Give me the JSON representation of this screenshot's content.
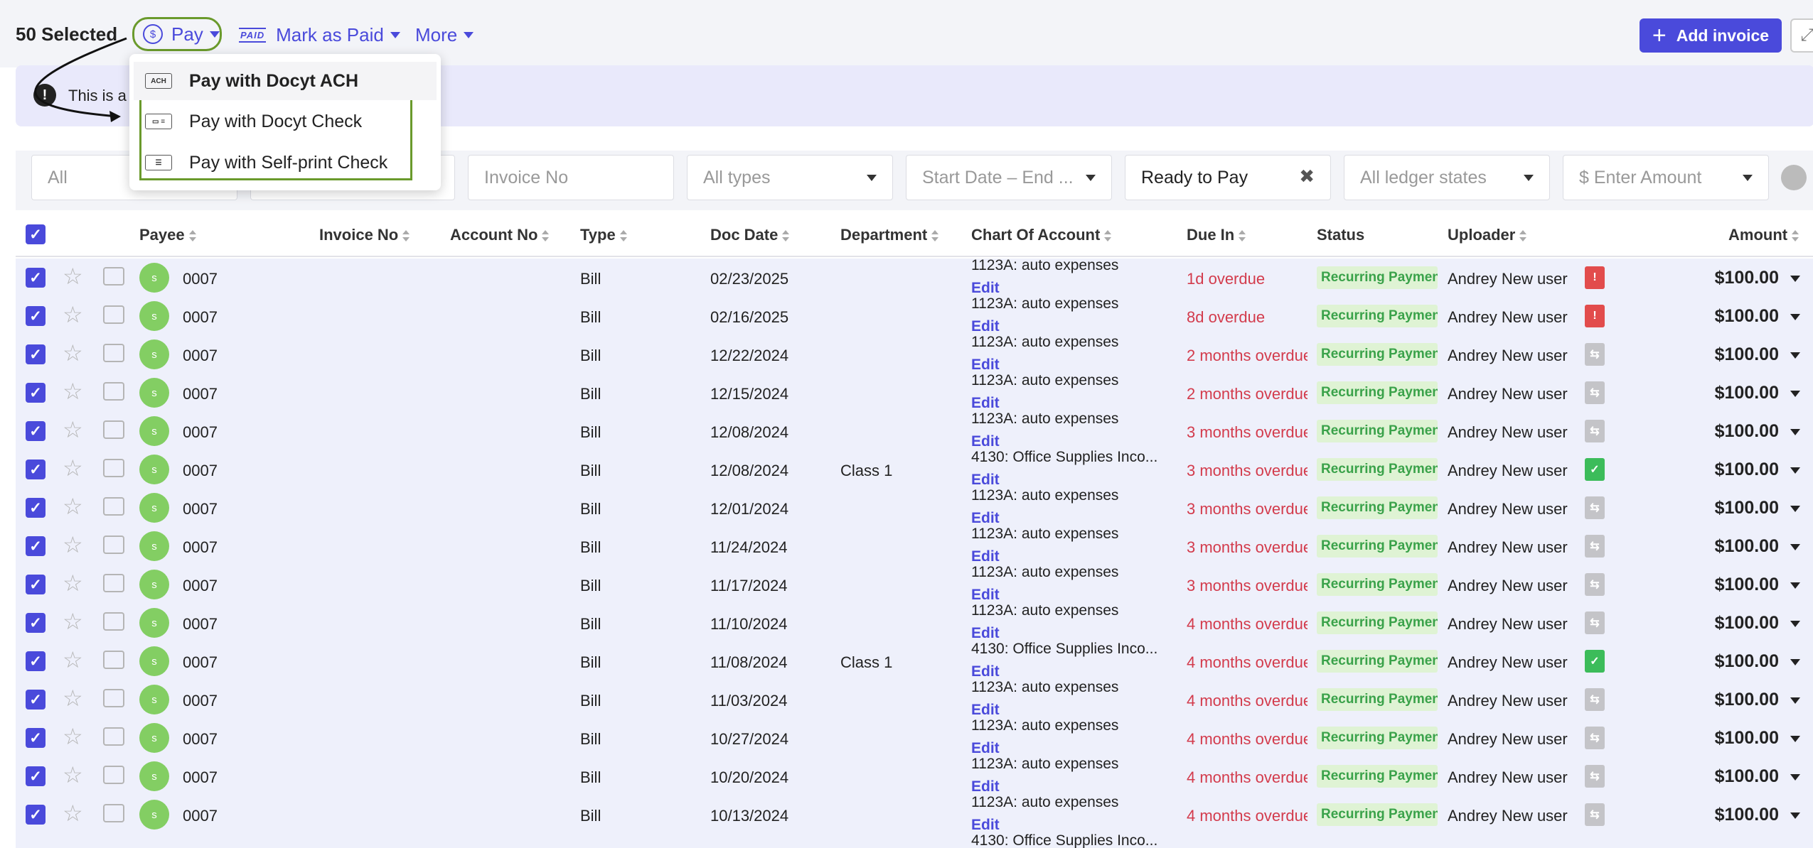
{
  "toolbar": {
    "selected": "50 Selected",
    "pay_label": "Pay",
    "mark_paid_label": "Mark as Paid",
    "more_label": "More",
    "add_invoice_label": "Add invoice",
    "paid_icon_text": "PAID"
  },
  "notice": {
    "text": "This is a"
  },
  "pay_menu": {
    "items": [
      {
        "icon": "ACH",
        "label": "Pay with Docyt ACH",
        "bold": true
      },
      {
        "icon": "check-icon",
        "label": "Pay with Docyt Check"
      },
      {
        "icon": "printer-check-icon",
        "label": "Pay with Self-print Check"
      }
    ]
  },
  "filters": {
    "payee_placeholder": "All",
    "invoice_placeholder": "Invoice No",
    "types": "All types",
    "dates": "Start Date – End ...",
    "status": "Ready to Pay",
    "ledger": "All ledger states",
    "amount": "$ Enter Amount"
  },
  "columns": {
    "payee": "Payee",
    "invoice_no": "Invoice No",
    "account_no": "Account No",
    "type": "Type",
    "doc_date": "Doc Date",
    "department": "Department",
    "chart": "Chart Of Account",
    "due_in": "Due In",
    "status": "Status",
    "uploader": "Uploader",
    "amount": "Amount"
  },
  "rows": [
    {
      "avatar": "s",
      "payee": "0007",
      "type": "Bill",
      "date": "02/23/2025",
      "dept": "",
      "account": "1123A: auto expenses",
      "edit": "Edit",
      "due": "1d overdue",
      "status": "Recurring Payment",
      "uploader": "Andrey New user",
      "flag": "alert",
      "amount": "$100.00"
    },
    {
      "avatar": "s",
      "payee": "0007",
      "type": "Bill",
      "date": "02/16/2025",
      "dept": "",
      "account": "1123A: auto expenses",
      "edit": "Edit",
      "due": "8d overdue",
      "status": "Recurring Payment",
      "uploader": "Andrey New user",
      "flag": "alert",
      "amount": "$100.00"
    },
    {
      "avatar": "s",
      "payee": "0007",
      "type": "Bill",
      "date": "12/22/2024",
      "dept": "",
      "account": "1123A: auto expenses",
      "edit": "Edit",
      "due": "2 months overdue",
      "status": "Recurring Payment",
      "uploader": "Andrey New user",
      "flag": "grey",
      "amount": "$100.00"
    },
    {
      "avatar": "s",
      "payee": "0007",
      "type": "Bill",
      "date": "12/15/2024",
      "dept": "",
      "account": "1123A: auto expenses",
      "edit": "Edit",
      "due": "2 months overdue",
      "status": "Recurring Payment",
      "uploader": "Andrey New user",
      "flag": "grey",
      "amount": "$100.00"
    },
    {
      "avatar": "s",
      "payee": "0007",
      "type": "Bill",
      "date": "12/08/2024",
      "dept": "",
      "account": "1123A: auto expenses",
      "edit": "Edit",
      "due": "3 months overdue",
      "status": "Recurring Payment",
      "uploader": "Andrey New user",
      "flag": "grey",
      "amount": "$100.00"
    },
    {
      "avatar": "s",
      "payee": "0007",
      "type": "Bill",
      "date": "12/08/2024",
      "dept": "Class 1",
      "account": "4130: Office Supplies Inco...",
      "edit": "Edit",
      "due": "3 months overdue",
      "status": "Recurring Payment",
      "uploader": "Andrey New user",
      "flag": "green",
      "amount": "$100.00"
    },
    {
      "avatar": "s",
      "payee": "0007",
      "type": "Bill",
      "date": "12/01/2024",
      "dept": "",
      "account": "1123A: auto expenses",
      "edit": "Edit",
      "due": "3 months overdue",
      "status": "Recurring Payment",
      "uploader": "Andrey New user",
      "flag": "grey",
      "amount": "$100.00"
    },
    {
      "avatar": "s",
      "payee": "0007",
      "type": "Bill",
      "date": "11/24/2024",
      "dept": "",
      "account": "1123A: auto expenses",
      "edit": "Edit",
      "due": "3 months overdue",
      "status": "Recurring Payment",
      "uploader": "Andrey New user",
      "flag": "grey",
      "amount": "$100.00"
    },
    {
      "avatar": "s",
      "payee": "0007",
      "type": "Bill",
      "date": "11/17/2024",
      "dept": "",
      "account": "1123A: auto expenses",
      "edit": "Edit",
      "due": "3 months overdue",
      "status": "Recurring Payment",
      "uploader": "Andrey New user",
      "flag": "grey",
      "amount": "$100.00"
    },
    {
      "avatar": "s",
      "payee": "0007",
      "type": "Bill",
      "date": "11/10/2024",
      "dept": "",
      "account": "1123A: auto expenses",
      "edit": "Edit",
      "due": "4 months overdue",
      "status": "Recurring Payment",
      "uploader": "Andrey New user",
      "flag": "grey",
      "amount": "$100.00"
    },
    {
      "avatar": "s",
      "payee": "0007",
      "type": "Bill",
      "date": "11/08/2024",
      "dept": "Class 1",
      "account": "4130: Office Supplies Inco...",
      "edit": "Edit",
      "due": "4 months overdue",
      "status": "Recurring Payment",
      "uploader": "Andrey New user",
      "flag": "green",
      "amount": "$100.00"
    },
    {
      "avatar": "s",
      "payee": "0007",
      "type": "Bill",
      "date": "11/03/2024",
      "dept": "",
      "account": "1123A: auto expenses",
      "edit": "Edit",
      "due": "4 months overdue",
      "status": "Recurring Payment",
      "uploader": "Andrey New user",
      "flag": "grey",
      "amount": "$100.00"
    },
    {
      "avatar": "s",
      "payee": "0007",
      "type": "Bill",
      "date": "10/27/2024",
      "dept": "",
      "account": "1123A: auto expenses",
      "edit": "Edit",
      "due": "4 months overdue",
      "status": "Recurring Payment",
      "uploader": "Andrey New user",
      "flag": "grey",
      "amount": "$100.00"
    },
    {
      "avatar": "s",
      "payee": "0007",
      "type": "Bill",
      "date": "10/20/2024",
      "dept": "",
      "account": "1123A: auto expenses",
      "edit": "Edit",
      "due": "4 months overdue",
      "status": "Recurring Payment",
      "uploader": "Andrey New user",
      "flag": "grey",
      "amount": "$100.00"
    },
    {
      "avatar": "s",
      "payee": "0007",
      "type": "Bill",
      "date": "10/13/2024",
      "dept": "",
      "account": "1123A: auto expenses",
      "edit": "Edit",
      "due": "4 months overdue",
      "status": "Recurring Payment",
      "uploader": "Andrey New user",
      "flag": "grey",
      "amount": "$100.00"
    }
  ],
  "partial_row": {
    "account": "4130: Office Supplies Inco..."
  },
  "colors": {
    "accent": "#4a4adb",
    "overdue": "#d33b4c",
    "status_bg": "#dff3d4",
    "status_fg": "#3aa24a",
    "highlight": "#6a9a2c",
    "alert": "#e24c4c",
    "done": "#3cbc5a",
    "neutral": "#c4c4c8"
  }
}
